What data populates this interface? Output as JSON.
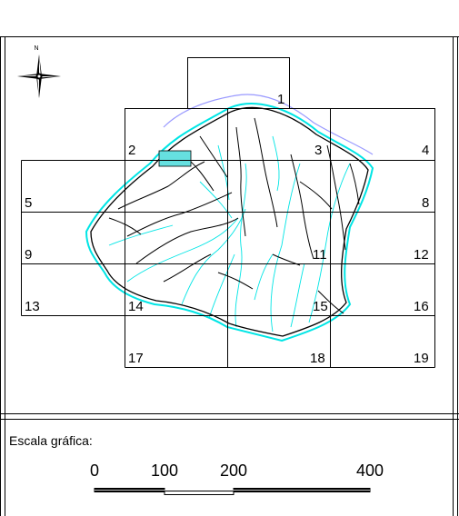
{
  "map": {
    "grid_cells": [
      {
        "id": "1",
        "label": "1"
      },
      {
        "id": "2",
        "label": "2"
      },
      {
        "id": "3",
        "label": "3"
      },
      {
        "id": "4",
        "label": "4"
      },
      {
        "id": "5",
        "label": "5"
      },
      {
        "id": "8",
        "label": "8"
      },
      {
        "id": "9",
        "label": "9"
      },
      {
        "id": "11",
        "label": "11"
      },
      {
        "id": "12",
        "label": "12"
      },
      {
        "id": "13",
        "label": "13"
      },
      {
        "id": "14",
        "label": "14"
      },
      {
        "id": "15",
        "label": "15"
      },
      {
        "id": "16",
        "label": "16"
      },
      {
        "id": "17",
        "label": "17"
      },
      {
        "id": "18",
        "label": "18"
      },
      {
        "id": "19",
        "label": "19"
      }
    ],
    "north_arrow": {
      "letter": "N",
      "icon": "north-arrow-icon"
    },
    "colors": {
      "rivers": "#00e5e5",
      "region_outline": "#000000",
      "border_top": "#9999ff",
      "highlight_box": "#66e0e0",
      "grid": "#000000"
    }
  },
  "scale_bar": {
    "title": "Escala gráfica:",
    "ticks": [
      "0",
      "100",
      "200",
      "400"
    ]
  }
}
